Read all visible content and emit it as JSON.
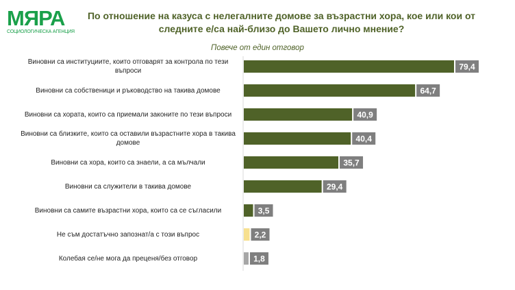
{
  "logo": {
    "name": "МЯРА",
    "tagline": "СОЦИОЛОГИЧЕСКА АГЕНЦИЯ",
    "color": "#1aa04a"
  },
  "chart_data": {
    "type": "bar",
    "orientation": "horizontal",
    "title": "По отношение на казуса с нелегалните домове за възрастни хора, кое или кои от следните е/са най-близо до Вашето лично мнение?",
    "subtitle": "Повече от един отговор",
    "categories": [
      "Виновни са институциите, които отговарят за контрола по тези въпроси",
      "Виновни са собственици и ръководство на такива домове",
      "Виновни са хората, които са приемали законите по тези въпроси",
      "Виновни са близките, които са оставили възрастните хора в такива домове",
      "Виновни са хора, които са знаели, а са мълчали",
      "Виновни са служители в такива домове",
      "Виновни са самите възрастни хора, които са се съгласили",
      "Не съм достатъчно запознат/а с този въпрос",
      "Колебая се/не мога да преценя/без отговор"
    ],
    "values": [
      79.4,
      64.7,
      40.9,
      40.4,
      35.7,
      29.4,
      3.5,
      2.2,
      1.8
    ],
    "labels": [
      "79,4",
      "64,7",
      "40,9",
      "40,4",
      "35,7",
      "29,4",
      "3,5",
      "2,2",
      "1,8"
    ],
    "bar_colors": [
      "#4f6228",
      "#4f6228",
      "#4f6228",
      "#4f6228",
      "#4f6228",
      "#4f6228",
      "#4f6228",
      "#f7e08f",
      "#a6a6a6"
    ],
    "label_bg": "#7f7f7f",
    "xlim": [
      0,
      80
    ],
    "grid": false
  }
}
